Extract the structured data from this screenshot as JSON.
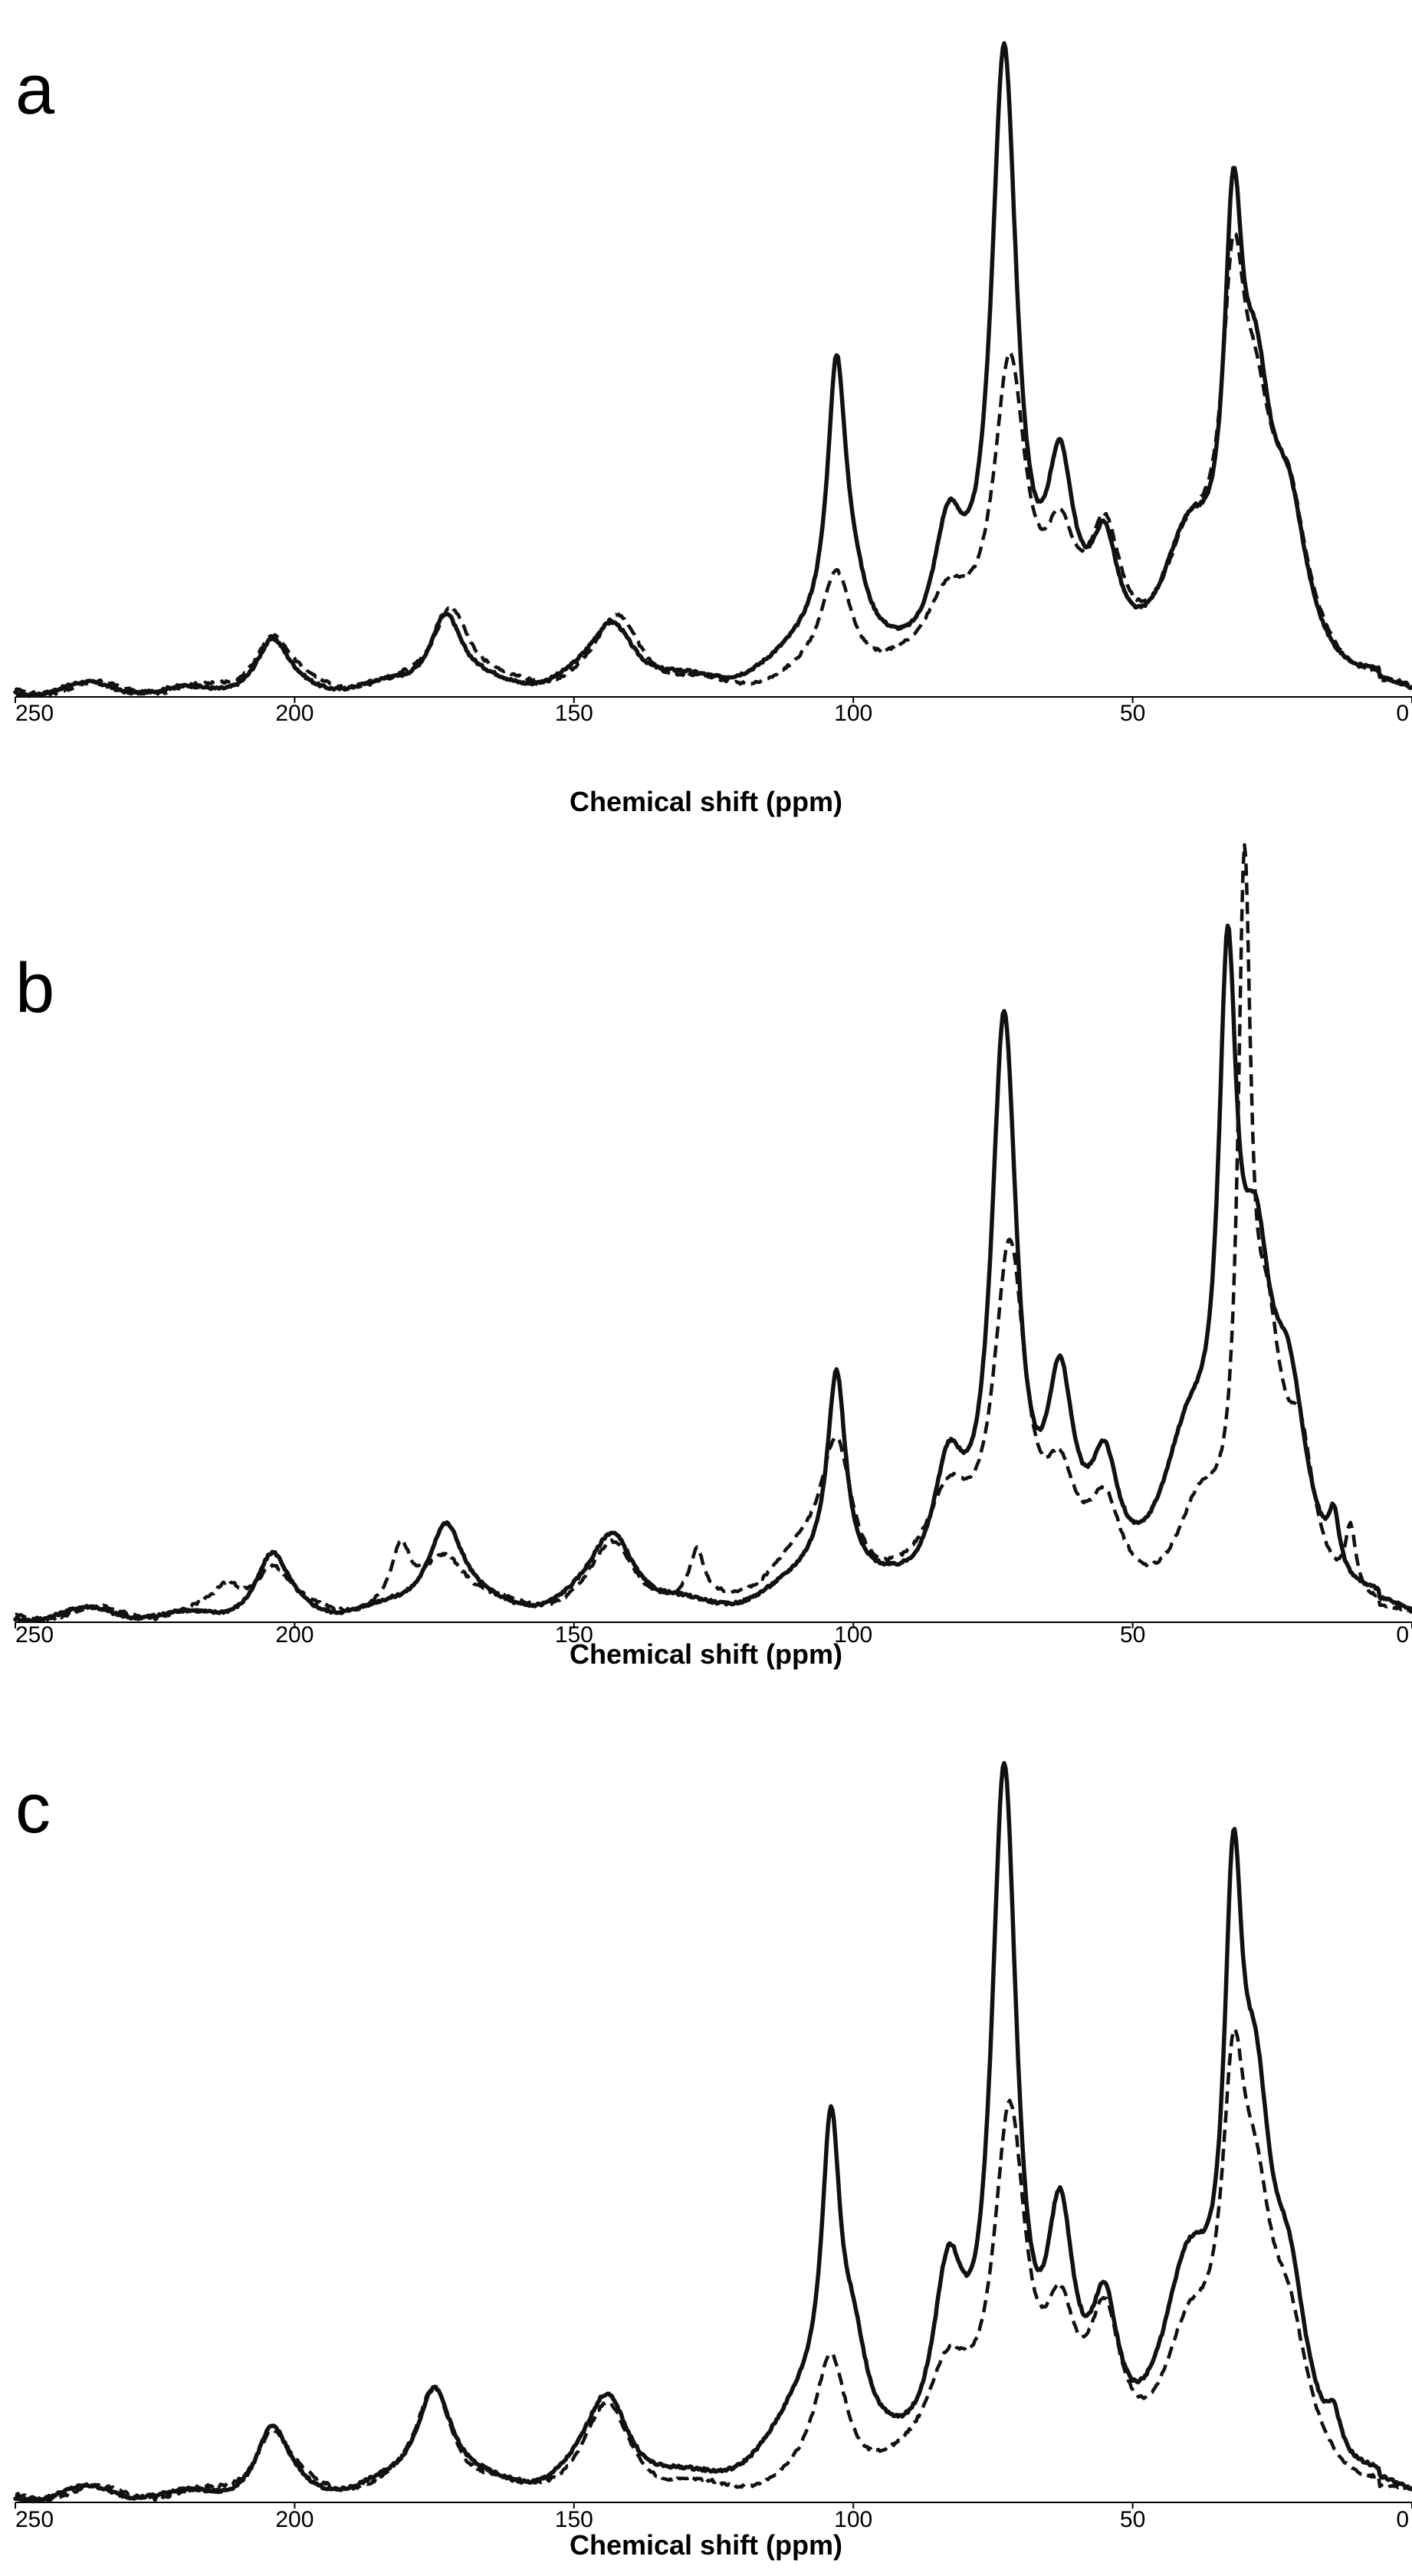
{
  "chart_data": [
    {
      "type": "line",
      "panel_label": "a",
      "title": "",
      "xlabel": "Chemical shift (ppm)",
      "ylabel": "",
      "xlim": [
        250,
        0
      ],
      "ylim": [
        -0.02,
        1.0
      ],
      "xticks": [
        "250",
        "200",
        "150",
        "100",
        "50",
        "0"
      ],
      "legend": "none",
      "series": [
        {
          "name": "solid",
          "style": "solid",
          "peaks": [
            {
              "center": 204,
              "height": 0.075,
              "width": 3.5
            },
            {
              "center": 173,
              "height": 0.12,
              "width": 3.5
            },
            {
              "center": 143,
              "height": 0.1,
              "width": 5
            },
            {
              "center": 103,
              "height": 0.4,
              "width": 2
            },
            {
              "center": 100,
              "height": 0.07,
              "width": 3
            },
            {
              "center": 105,
              "height": 0.07,
              "width": 8
            },
            {
              "center": 83,
              "height": 0.2,
              "width": 3.5
            },
            {
              "center": 73,
              "height": 0.92,
              "width": 2.8
            },
            {
              "center": 63,
              "height": 0.27,
              "width": 3
            },
            {
              "center": 55,
              "height": 0.16,
              "width": 3
            },
            {
              "center": 40,
              "height": 0.18,
              "width": 6
            },
            {
              "center": 32,
              "height": 0.55,
              "width": 2
            },
            {
              "center": 28,
              "height": 0.35,
              "width": 3.5
            },
            {
              "center": 22,
              "height": 0.2,
              "width": 4
            }
          ]
        },
        {
          "name": "dashed",
          "style": "dashed",
          "peaks": [
            {
              "center": 204,
              "height": 0.085,
              "width": 4
            },
            {
              "center": 172,
              "height": 0.13,
              "width": 4
            },
            {
              "center": 142,
              "height": 0.11,
              "width": 5
            },
            {
              "center": 103,
              "height": 0.17,
              "width": 3.5
            },
            {
              "center": 83,
              "height": 0.12,
              "width": 5
            },
            {
              "center": 72,
              "height": 0.45,
              "width": 3.5
            },
            {
              "center": 63,
              "height": 0.17,
              "width": 3.5
            },
            {
              "center": 55,
              "height": 0.18,
              "width": 3.5
            },
            {
              "center": 40,
              "height": 0.17,
              "width": 6
            },
            {
              "center": 32,
              "height": 0.45,
              "width": 2.5
            },
            {
              "center": 28,
              "height": 0.3,
              "width": 4
            },
            {
              "center": 22,
              "height": 0.2,
              "width": 4
            }
          ]
        }
      ]
    },
    {
      "type": "line",
      "panel_label": "b",
      "title": "",
      "xlabel": "Chemical shift (ppm)",
      "ylabel": "",
      "xlim": [
        250,
        0
      ],
      "ylim": [
        -0.02,
        1.0
      ],
      "xticks": [
        "250",
        "200",
        "150",
        "100",
        "50",
        "0"
      ],
      "legend": "none",
      "series": [
        {
          "name": "solid",
          "style": "solid",
          "peaks": [
            {
              "center": 204,
              "height": 0.09,
              "width": 3.5
            },
            {
              "center": 173,
              "height": 0.14,
              "width": 4
            },
            {
              "center": 143,
              "height": 0.12,
              "width": 5
            },
            {
              "center": 103,
              "height": 0.3,
              "width": 2
            },
            {
              "center": 105,
              "height": 0.06,
              "width": 8
            },
            {
              "center": 83,
              "height": 0.18,
              "width": 3.5
            },
            {
              "center": 73,
              "height": 0.84,
              "width": 2.8
            },
            {
              "center": 63,
              "height": 0.28,
              "width": 3
            },
            {
              "center": 55,
              "height": 0.16,
              "width": 3
            },
            {
              "center": 40,
              "height": 0.2,
              "width": 6
            },
            {
              "center": 33,
              "height": 0.78,
              "width": 2
            },
            {
              "center": 28,
              "height": 0.4,
              "width": 3.5
            },
            {
              "center": 22,
              "height": 0.25,
              "width": 4
            },
            {
              "center": 14,
              "height": 0.08,
              "width": 1.2
            }
          ]
        },
        {
          "name": "dashed",
          "style": "dashed",
          "peaks": [
            {
              "center": 212,
              "height": 0.04,
              "width": 3
            },
            {
              "center": 204,
              "height": 0.07,
              "width": 4
            },
            {
              "center": 181,
              "height": 0.08,
              "width": 2
            },
            {
              "center": 173,
              "height": 0.09,
              "width": 5
            },
            {
              "center": 143,
              "height": 0.1,
              "width": 5
            },
            {
              "center": 128,
              "height": 0.07,
              "width": 1.5
            },
            {
              "center": 103,
              "height": 0.22,
              "width": 3.5
            },
            {
              "center": 110,
              "height": 0.06,
              "width": 8
            },
            {
              "center": 83,
              "height": 0.15,
              "width": 5
            },
            {
              "center": 72,
              "height": 0.5,
              "width": 3.5
            },
            {
              "center": 63,
              "height": 0.15,
              "width": 3.5
            },
            {
              "center": 55,
              "height": 0.12,
              "width": 3.5
            },
            {
              "center": 38,
              "height": 0.12,
              "width": 5
            },
            {
              "center": 30,
              "height": 0.95,
              "width": 1.4
            },
            {
              "center": 26,
              "height": 0.35,
              "width": 3.5
            },
            {
              "center": 20,
              "height": 0.18,
              "width": 3
            },
            {
              "center": 11,
              "height": 0.1,
              "width": 1.2
            }
          ]
        }
      ]
    },
    {
      "type": "line",
      "panel_label": "c",
      "title": "",
      "xlabel": "Chemical shift (ppm)",
      "ylabel": "",
      "xlim": [
        250,
        0
      ],
      "ylim": [
        -0.02,
        1.0
      ],
      "xticks": [
        "250",
        "200",
        "150",
        "100",
        "50",
        "0"
      ],
      "legend": "none",
      "series": [
        {
          "name": "solid",
          "style": "solid",
          "peaks": [
            {
              "center": 204,
              "height": 0.09,
              "width": 3.5
            },
            {
              "center": 175,
              "height": 0.15,
              "width": 4
            },
            {
              "center": 144,
              "height": 0.13,
              "width": 5
            },
            {
              "center": 104,
              "height": 0.4,
              "width": 2
            },
            {
              "center": 100,
              "height": 0.12,
              "width": 3
            },
            {
              "center": 108,
              "height": 0.1,
              "width": 8
            },
            {
              "center": 83,
              "height": 0.25,
              "width": 3.5
            },
            {
              "center": 73,
              "height": 0.93,
              "width": 2.8
            },
            {
              "center": 63,
              "height": 0.3,
              "width": 3
            },
            {
              "center": 55,
              "height": 0.18,
              "width": 3
            },
            {
              "center": 40,
              "height": 0.25,
              "width": 6
            },
            {
              "center": 32,
              "height": 0.62,
              "width": 2
            },
            {
              "center": 28,
              "height": 0.4,
              "width": 3.5
            },
            {
              "center": 22,
              "height": 0.2,
              "width": 4
            },
            {
              "center": 14,
              "height": 0.05,
              "width": 1.5
            }
          ]
        },
        {
          "name": "dashed",
          "style": "dashed",
          "peaks": [
            {
              "center": 204,
              "height": 0.09,
              "width": 4
            },
            {
              "center": 175,
              "height": 0.15,
              "width": 4
            },
            {
              "center": 144,
              "height": 0.12,
              "width": 5
            },
            {
              "center": 104,
              "height": 0.18,
              "width": 3.5
            },
            {
              "center": 83,
              "height": 0.15,
              "width": 5
            },
            {
              "center": 72,
              "height": 0.47,
              "width": 3.5
            },
            {
              "center": 63,
              "height": 0.18,
              "width": 3.5
            },
            {
              "center": 55,
              "height": 0.18,
              "width": 3.5
            },
            {
              "center": 40,
              "height": 0.17,
              "width": 6
            },
            {
              "center": 32,
              "height": 0.4,
              "width": 2.5
            },
            {
              "center": 28,
              "height": 0.3,
              "width": 4
            },
            {
              "center": 22,
              "height": 0.15,
              "width": 4
            }
          ]
        }
      ]
    }
  ]
}
